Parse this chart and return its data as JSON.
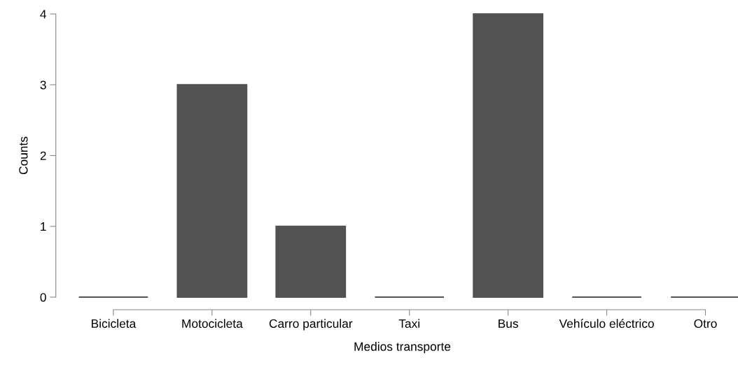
{
  "chart_data": {
    "type": "bar",
    "xlabel": "Medios transporte",
    "ylabel": "Counts",
    "categories": [
      "Bicicleta",
      "Motocicleta",
      "Carro particular",
      "Taxi",
      "Bus",
      "Vehículo eléctrico",
      "Otro"
    ],
    "values": [
      0,
      3,
      1,
      0,
      4,
      0,
      0
    ],
    "color": "#525252",
    "ylim": [
      0,
      4
    ],
    "yticks": [
      0,
      1,
      2,
      3,
      4
    ],
    "grid": false,
    "legend": false
  }
}
